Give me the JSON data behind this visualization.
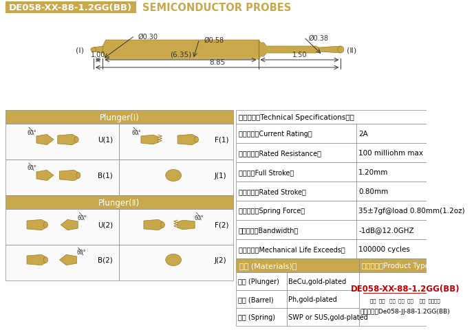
{
  "title_box_text": "DE058-XX-88-1.2GG(BB)",
  "title_box_color": "#C9A84C",
  "title_text_color": "#FFFFFF",
  "subtitle_text": "SEMICONDUCTOR PROBES",
  "subtitle_color": "#C9A84C",
  "bg_color": "#FFFFFF",
  "probe_gold_color": "#C9A84C",
  "probe_gold_dark": "#A07A28",
  "dim_color": "#333333",
  "table_border_color": "#888888",
  "table_header_bg": "#C9A84C",
  "table_header_text": "#FFFFFF",
  "dims": {
    "d_left": "Ø0.30",
    "d_center": "Ø0.58",
    "d_right": "Ø0.38",
    "len_center": "(6.35)",
    "len_left": "1.00",
    "len_right": "1.50",
    "len_total": "8.85"
  },
  "spec_header": "技术要求（Technical Specifications）：",
  "spec_rows": [
    [
      "额定电流（Current Rating）",
      "2A"
    ],
    [
      "额定电阰（Rated Resistance）",
      "100 milliohm max"
    ],
    [
      "满行程（Full Stroke）",
      "1.20mm"
    ],
    [
      "额定行程（Rated Stroke）",
      "0.80mm"
    ],
    [
      "额定弹力（Spring Force）",
      "35±7gf@load 0.80mm(1.2oz)"
    ],
    [
      "频率带宽（Bandwidth）",
      "-1dB@12.0GHZ"
    ],
    [
      "测试寿命（Mechanical Life Exceeds）",
      "100000 cycles"
    ]
  ],
  "mat_rows": [
    [
      "针头 (Plunger)",
      "BeCu,gold-plated"
    ],
    [
      "针管 (Barrel)",
      "Ph,gold-plated"
    ],
    [
      "弹簧 (Spring)",
      "SWP or SUS,gold-plated"
    ]
  ],
  "plunger1_label": "Plunger(Ⅰ)",
  "plunger2_label": "Plunger(Ⅱ)",
  "mat_label": "材质 (Materials)：",
  "prod_label": "成品型号（Product Type）：",
  "prod_code": "DE058-XX-88-1.2GG(BB)",
  "prod_code_color": "#C00000",
  "prod_sub_labels": "系列  规格   头型  行程  弹力    镀金  针头材质",
  "prod_order": "订购举例：De058-JJ-88-1.2GG(BB)",
  "label_I": "(Ⅰ)",
  "label_II": "(Ⅱ)"
}
